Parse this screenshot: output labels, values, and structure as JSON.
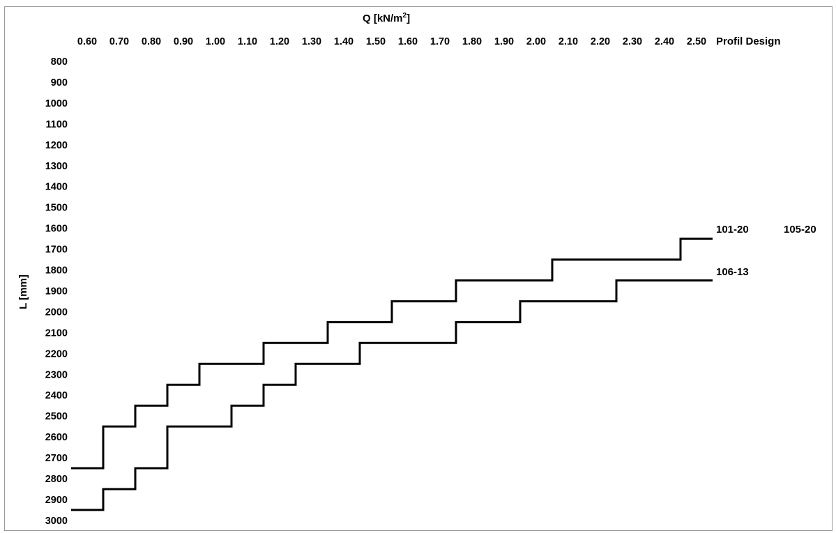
{
  "chart_data": {
    "type": "line",
    "x_title": "Q [kN/m",
    "x_title_sup": "2",
    "x_title_end": "]",
    "y_title": "L [mm]",
    "x_ticks": [
      "0.60",
      "0.70",
      "0.80",
      "0.90",
      "1.00",
      "1.10",
      "1.20",
      "1.30",
      "1.40",
      "1.50",
      "1.60",
      "1.70",
      "1.80",
      "1.90",
      "2.00",
      "2.10",
      "2.20",
      "2.30",
      "2.40",
      "2.50"
    ],
    "x_extra_header": "Profil Design",
    "y_ticks": [
      "800",
      "900",
      "1000",
      "1100",
      "1200",
      "1300",
      "1400",
      "1500",
      "1600",
      "1700",
      "1800",
      "1900",
      "2000",
      "2100",
      "2200",
      "2300",
      "2400",
      "2500",
      "2600",
      "2700",
      "2800",
      "2900",
      "3000"
    ],
    "xlim": [
      0.6,
      2.5
    ],
    "ylim": [
      800,
      3000
    ],
    "y_inverted": true,
    "grid": false,
    "series": [
      {
        "name": "101-20",
        "x": [
          0.55,
          0.65,
          0.65,
          0.75,
          0.75,
          0.85,
          0.85,
          0.95,
          0.95,
          1.15,
          1.15,
          1.35,
          1.35,
          1.55,
          1.55,
          1.75,
          1.75,
          2.05,
          2.05,
          2.45,
          2.45,
          2.55
        ],
        "y": [
          2750,
          2750,
          2550,
          2550,
          2450,
          2450,
          2350,
          2350,
          2250,
          2250,
          2150,
          2150,
          2050,
          2050,
          1950,
          1950,
          1850,
          1850,
          1750,
          1750,
          1650,
          1650
        ]
      },
      {
        "name": "106-13",
        "x": [
          0.55,
          0.65,
          0.65,
          0.75,
          0.75,
          0.85,
          0.85,
          1.05,
          1.05,
          1.15,
          1.15,
          1.25,
          1.25,
          1.45,
          1.45,
          1.75,
          1.75,
          1.95,
          1.95,
          2.25,
          2.25,
          2.55
        ],
        "y": [
          2950,
          2950,
          2850,
          2850,
          2750,
          2750,
          2550,
          2550,
          2450,
          2450,
          2350,
          2350,
          2250,
          2250,
          2150,
          2150,
          2050,
          2050,
          1950,
          1950,
          1850,
          1850
        ]
      }
    ],
    "annotations": [
      "101-20",
      "105-20",
      "106-13"
    ]
  }
}
